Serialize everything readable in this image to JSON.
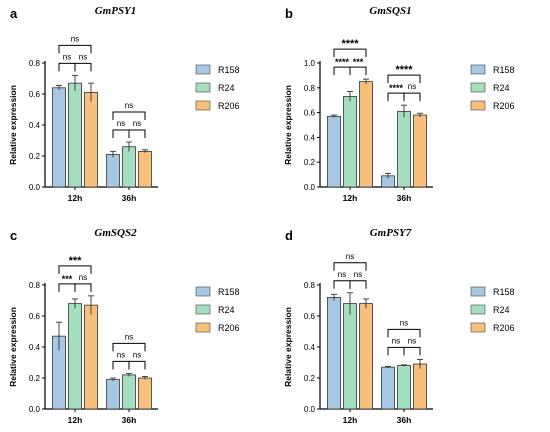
{
  "colors": {
    "R158": "#a7c8e4",
    "R24": "#a5dfc0",
    "R206": "#f8c07c"
  },
  "chart_data": [
    {
      "type": "bar",
      "panel": "a",
      "title": "GmPSY1",
      "ylabel": "Relative expression",
      "ylim": [
        0,
        0.8
      ],
      "yticks": [
        "0.0",
        "0.2",
        "0.4",
        "0.6",
        "0.8"
      ],
      "categories": [
        "12h",
        "36h"
      ],
      "series": [
        {
          "name": "R158",
          "values": [
            0.64,
            0.21
          ],
          "errors": [
            0.015,
            0.02
          ]
        },
        {
          "name": "R24",
          "values": [
            0.67,
            0.26
          ],
          "errors": [
            0.05,
            0.03
          ]
        },
        {
          "name": "R206",
          "values": [
            0.61,
            0.23
          ],
          "errors": [
            0.06,
            0.01
          ]
        }
      ],
      "legend": [
        "R158",
        "R24",
        "R206"
      ],
      "significance": [
        {
          "category": 0,
          "from": 0,
          "to": 2,
          "label": "ns"
        },
        {
          "category": 0,
          "from": 0,
          "to": 1,
          "label": "ns"
        },
        {
          "category": 0,
          "from": 1,
          "to": 2,
          "label": "ns"
        },
        {
          "category": 1,
          "from": 0,
          "to": 2,
          "label": "ns"
        },
        {
          "category": 1,
          "from": 0,
          "to": 1,
          "label": "ns"
        },
        {
          "category": 1,
          "from": 1,
          "to": 2,
          "label": "ns"
        }
      ]
    },
    {
      "type": "bar",
      "panel": "b",
      "title": "GmSQS1",
      "ylabel": "Relative expression",
      "ylim": [
        0,
        1.0
      ],
      "yticks": [
        "0.0",
        "0.2",
        "0.4",
        "0.6",
        "0.8",
        "1.0"
      ],
      "categories": [
        "12h",
        "36h"
      ],
      "series": [
        {
          "name": "R158",
          "values": [
            0.57,
            0.09
          ],
          "errors": [
            0.01,
            0.02
          ]
        },
        {
          "name": "R24",
          "values": [
            0.73,
            0.61
          ],
          "errors": [
            0.04,
            0.05
          ]
        },
        {
          "name": "R206",
          "values": [
            0.85,
            0.58
          ],
          "errors": [
            0.02,
            0.015
          ]
        }
      ],
      "legend": [
        "R158",
        "R24",
        "R206"
      ],
      "significance": [
        {
          "category": 0,
          "from": 0,
          "to": 2,
          "label": "****"
        },
        {
          "category": 0,
          "from": 0,
          "to": 1,
          "label": "****"
        },
        {
          "category": 0,
          "from": 1,
          "to": 2,
          "label": "***"
        },
        {
          "category": 1,
          "from": 0,
          "to": 2,
          "label": "****"
        },
        {
          "category": 1,
          "from": 0,
          "to": 1,
          "label": "****"
        },
        {
          "category": 1,
          "from": 1,
          "to": 2,
          "label": "ns"
        }
      ]
    },
    {
      "type": "bar",
      "panel": "c",
      "title": "GmSQS2",
      "ylabel": "Relative expression",
      "ylim": [
        0,
        0.8
      ],
      "yticks": [
        "0.0",
        "0.2",
        "0.4",
        "0.6",
        "0.8"
      ],
      "categories": [
        "12h",
        "36h"
      ],
      "series": [
        {
          "name": "R158",
          "values": [
            0.47,
            0.19
          ],
          "errors": [
            0.09,
            0.01
          ]
        },
        {
          "name": "R24",
          "values": [
            0.68,
            0.22
          ],
          "errors": [
            0.03,
            0.01
          ]
        },
        {
          "name": "R206",
          "values": [
            0.67,
            0.2
          ],
          "errors": [
            0.06,
            0.01
          ]
        }
      ],
      "legend": [
        "R158",
        "R24",
        "R206"
      ],
      "significance": [
        {
          "category": 0,
          "from": 0,
          "to": 2,
          "label": "***"
        },
        {
          "category": 0,
          "from": 0,
          "to": 1,
          "label": "***"
        },
        {
          "category": 0,
          "from": 1,
          "to": 2,
          "label": "ns"
        },
        {
          "category": 1,
          "from": 0,
          "to": 2,
          "label": "ns"
        },
        {
          "category": 1,
          "from": 0,
          "to": 1,
          "label": "ns"
        },
        {
          "category": 1,
          "from": 1,
          "to": 2,
          "label": "ns"
        }
      ]
    },
    {
      "type": "bar",
      "panel": "d",
      "title": "GmPSY7",
      "ylabel": "Relative expression",
      "ylim": [
        0,
        0.8
      ],
      "yticks": [
        "0.0",
        "0.2",
        "0.4",
        "0.6",
        "0.8"
      ],
      "categories": [
        "12h",
        "36h"
      ],
      "series": [
        {
          "name": "R158",
          "values": [
            0.72,
            0.27
          ],
          "errors": [
            0.02,
            0.005
          ]
        },
        {
          "name": "R24",
          "values": [
            0.68,
            0.28
          ],
          "errors": [
            0.07,
            0.005
          ]
        },
        {
          "name": "R206",
          "values": [
            0.68,
            0.29
          ],
          "errors": [
            0.03,
            0.03
          ]
        }
      ],
      "legend": [
        "R158",
        "R24",
        "R206"
      ],
      "significance": [
        {
          "category": 0,
          "from": 0,
          "to": 2,
          "label": "ns"
        },
        {
          "category": 0,
          "from": 0,
          "to": 1,
          "label": "ns"
        },
        {
          "category": 0,
          "from": 1,
          "to": 2,
          "label": "ns"
        },
        {
          "category": 1,
          "from": 0,
          "to": 2,
          "label": "ns"
        },
        {
          "category": 1,
          "from": 0,
          "to": 1,
          "label": "ns"
        },
        {
          "category": 1,
          "from": 1,
          "to": 2,
          "label": "ns"
        }
      ]
    }
  ]
}
